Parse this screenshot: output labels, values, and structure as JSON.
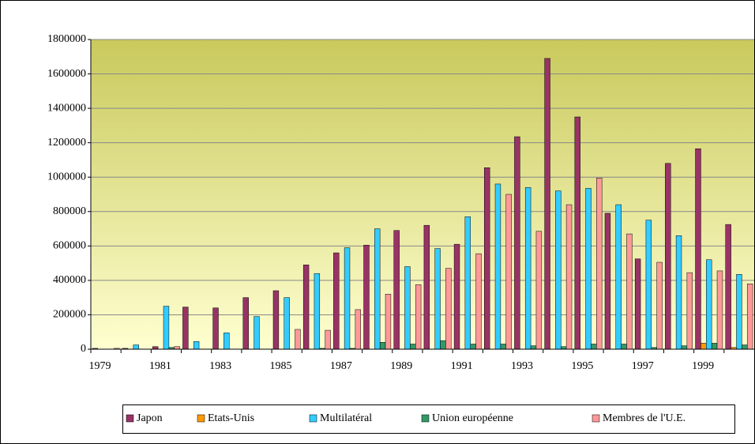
{
  "chart_data": {
    "type": "bar",
    "categories": [
      "1979",
      null,
      "1981",
      null,
      "1983",
      null,
      "1985",
      null,
      "1987",
      null,
      "1989",
      null,
      "1991",
      null,
      "1993",
      null,
      "1995",
      null,
      "1997",
      null,
      "1999",
      null
    ],
    "series": [
      {
        "name": "Japon",
        "color": "#993366",
        "values": [
          5000,
          5000,
          15000,
          245000,
          240000,
          300000,
          340000,
          490000,
          560000,
          605000,
          690000,
          720000,
          610000,
          1055000,
          1235000,
          1690000,
          1350000,
          790000,
          525000,
          1080000,
          1165000,
          725000
        ]
      },
      {
        "name": "Etats-Unis",
        "color": "#ff9900",
        "values": [
          0,
          0,
          0,
          0,
          0,
          0,
          0,
          0,
          0,
          0,
          0,
          0,
          0,
          0,
          0,
          0,
          0,
          0,
          0,
          0,
          35000,
          10000
        ]
      },
      {
        "name": "Multilatéral",
        "color": "#33ccff",
        "values": [
          0,
          25000,
          250000,
          45000,
          95000,
          190000,
          300000,
          440000,
          590000,
          700000,
          480000,
          585000,
          770000,
          960000,
          940000,
          920000,
          935000,
          840000,
          750000,
          660000,
          520000,
          435000
        ]
      },
      {
        "name": "Union européenne",
        "color": "#339966",
        "values": [
          0,
          0,
          10000,
          0,
          0,
          0,
          0,
          5000,
          5000,
          40000,
          30000,
          50000,
          30000,
          30000,
          20000,
          15000,
          30000,
          30000,
          10000,
          20000,
          35000,
          25000
        ]
      },
      {
        "name": "Membres de l'U.E.",
        "color": "#ff9999",
        "values": [
          5000,
          0,
          15000,
          0,
          0,
          0,
          115000,
          110000,
          230000,
          320000,
          375000,
          470000,
          555000,
          900000,
          685000,
          840000,
          995000,
          670000,
          505000,
          445000,
          455000,
          380000
        ]
      }
    ],
    "ylim": [
      0,
      1800000
    ],
    "yticks": [
      0,
      200000,
      400000,
      600000,
      800000,
      1000000,
      1200000,
      1400000,
      1600000,
      1800000
    ],
    "grid": true
  }
}
